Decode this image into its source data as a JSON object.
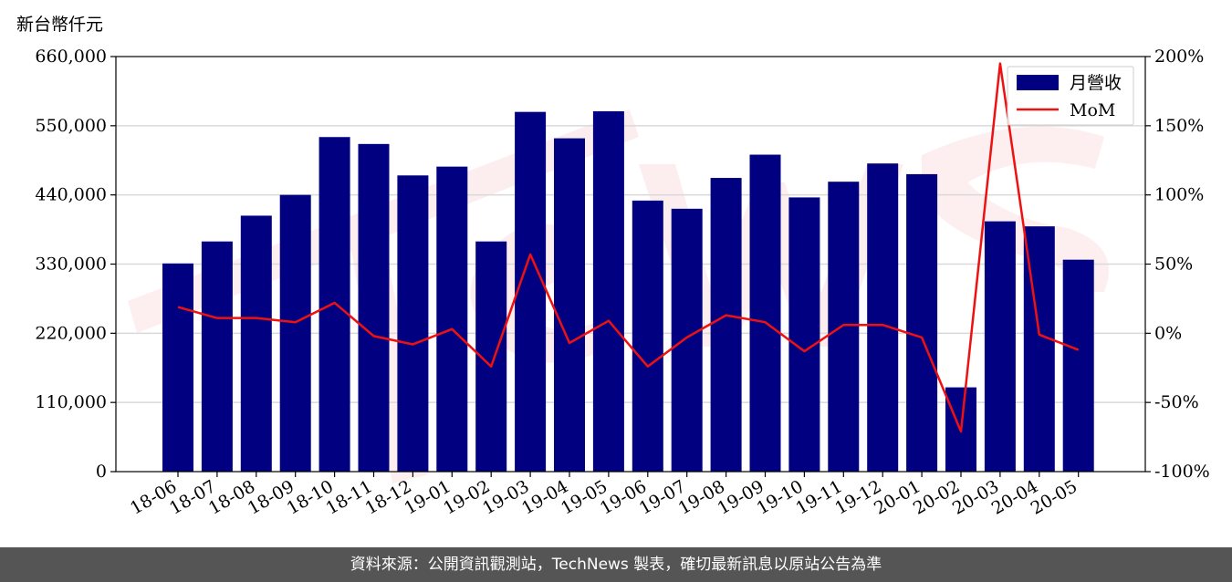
{
  "chart_data": {
    "type": "bar",
    "title": "",
    "unit_label": "新台幣仟元",
    "categories": [
      "18-06",
      "18-07",
      "18-08",
      "18-09",
      "18-10",
      "18-11",
      "18-12",
      "19-01",
      "19-02",
      "19-03",
      "19-04",
      "19-05",
      "19-06",
      "19-07",
      "19-08",
      "19-09",
      "19-10",
      "19-11",
      "19-12",
      "20-01",
      "20-02",
      "20-03",
      "20-04",
      "20-05"
    ],
    "series": [
      {
        "name": "月營收",
        "axis": "left",
        "type": "bar",
        "color": "#000080",
        "values": [
          331000,
          366000,
          407000,
          440000,
          532000,
          521000,
          471000,
          485000,
          366000,
          572000,
          530000,
          573000,
          431000,
          418000,
          467000,
          504000,
          436000,
          461000,
          490000,
          473000,
          134000,
          398000,
          390000,
          337000
        ]
      },
      {
        "name": "MoM",
        "axis": "right",
        "type": "line",
        "color": "#ee1111",
        "values": [
          19,
          11,
          11,
          8,
          22,
          -2,
          -8,
          3,
          -24,
          57,
          -7,
          9,
          -24,
          -3,
          13,
          8,
          -13,
          6,
          6,
          -3,
          -71,
          195,
          -1,
          -12
        ]
      }
    ],
    "ylim_left": [
      0,
      660000
    ],
    "ylim_right": [
      -100,
      200
    ],
    "yticks_left": [
      "0",
      "110,000",
      "220,000",
      "330,000",
      "440,000",
      "550,000",
      "660,000"
    ],
    "yticks_left_values": [
      0,
      110000,
      220000,
      330000,
      440000,
      550000,
      660000
    ],
    "yticks_right": [
      "-100%",
      "-50%",
      "0%",
      "50%",
      "100%",
      "150%",
      "200%"
    ],
    "yticks_right_values": [
      -100,
      -50,
      0,
      50,
      100,
      150,
      200
    ],
    "grid": "horizontal",
    "legend_position": "top-right"
  },
  "footer": {
    "text": "資料來源：公開資訊觀測站，TechNews 製表，確切最新訊息以原站公告為準"
  },
  "colors": {
    "bar": "#000080",
    "line": "#ee1111",
    "footer_bg": "#555555",
    "grid": "#d9d9d9"
  }
}
